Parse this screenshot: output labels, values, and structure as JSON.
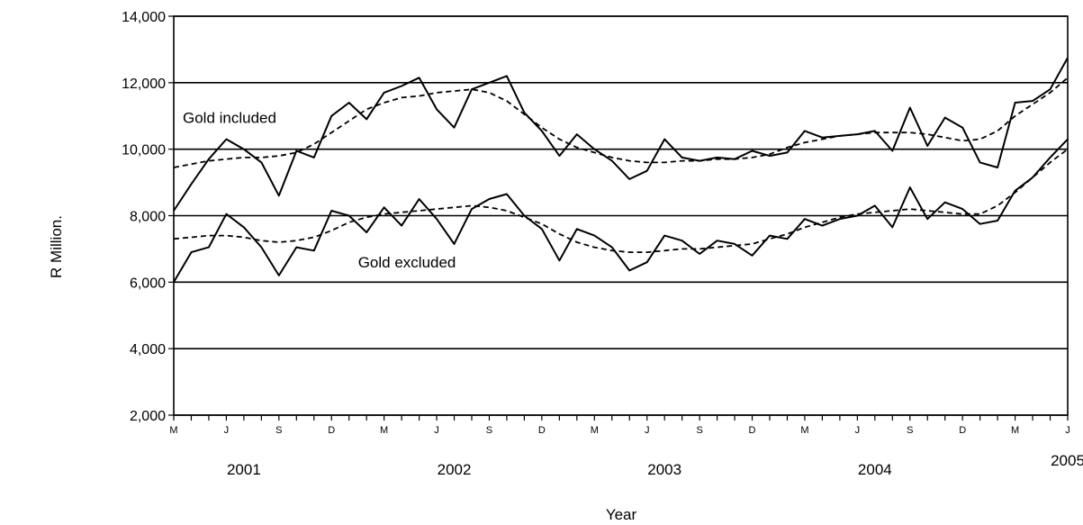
{
  "chart_data": {
    "type": "line",
    "xlabel": "Year",
    "ylabel": "R Million.",
    "ylim": [
      2000,
      14000
    ],
    "yticks": [
      2000,
      4000,
      6000,
      8000,
      10000,
      12000,
      14000
    ],
    "ytick_labels": [
      "2,000",
      "4,000",
      "6,000",
      "8,000",
      "10,000",
      "12,000",
      "14,000"
    ],
    "grid": "horizontal",
    "x_start": "2001-03",
    "x_end": "2005-06",
    "month_ticks": [
      {
        "date": "2001-03",
        "label": "M"
      },
      {
        "date": "2001-06",
        "label": "J"
      },
      {
        "date": "2001-09",
        "label": "S"
      },
      {
        "date": "2001-12",
        "label": "D"
      },
      {
        "date": "2002-03",
        "label": "M"
      },
      {
        "date": "2002-06",
        "label": "J"
      },
      {
        "date": "2002-09",
        "label": "S"
      },
      {
        "date": "2002-12",
        "label": "D"
      },
      {
        "date": "2003-03",
        "label": "M"
      },
      {
        "date": "2003-06",
        "label": "J"
      },
      {
        "date": "2003-09",
        "label": "S"
      },
      {
        "date": "2003-12",
        "label": "D"
      },
      {
        "date": "2004-03",
        "label": "M"
      },
      {
        "date": "2004-06",
        "label": "J"
      },
      {
        "date": "2004-09",
        "label": "S"
      },
      {
        "date": "2004-12",
        "label": "D"
      },
      {
        "date": "2005-03",
        "label": "M"
      },
      {
        "date": "2005-06",
        "label": "J"
      }
    ],
    "year_labels": [
      {
        "year": "2001",
        "center": "2001-07"
      },
      {
        "year": "2002",
        "center": "2002-07"
      },
      {
        "year": "2003",
        "center": "2003-07"
      },
      {
        "year": "2004",
        "center": "2004-07"
      },
      {
        "year": "2005",
        "center": "2005-06"
      }
    ],
    "annotations": [
      {
        "text": "Gold included",
        "date": "2001-03",
        "value": 10950
      },
      {
        "text": "Gold excluded",
        "date": "2002-01",
        "value": 6600
      }
    ],
    "x": [
      "2001-03",
      "2001-04",
      "2001-05",
      "2001-06",
      "2001-07",
      "2001-08",
      "2001-09",
      "2001-10",
      "2001-11",
      "2001-12",
      "2002-01",
      "2002-02",
      "2002-03",
      "2002-04",
      "2002-05",
      "2002-06",
      "2002-07",
      "2002-08",
      "2002-09",
      "2002-10",
      "2002-11",
      "2002-12",
      "2003-01",
      "2003-02",
      "2003-03",
      "2003-04",
      "2003-05",
      "2003-06",
      "2003-07",
      "2003-08",
      "2003-09",
      "2003-10",
      "2003-11",
      "2003-12",
      "2004-01",
      "2004-02",
      "2004-03",
      "2004-04",
      "2004-05",
      "2004-06",
      "2004-07",
      "2004-08",
      "2004-09",
      "2004-10",
      "2004-11",
      "2004-12",
      "2005-01",
      "2005-02",
      "2005-03",
      "2005-04",
      "2005-05",
      "2005-06"
    ],
    "series": [
      {
        "style": "solid",
        "values": [
          8150,
          8950,
          9700,
          10300,
          10000,
          9600,
          8600,
          9950,
          9750,
          11000,
          11400,
          10900,
          11700,
          11900,
          12150,
          11200,
          10650,
          11800,
          12000,
          12200,
          11100,
          10550,
          9800,
          10450,
          10000,
          9650,
          9100,
          9350,
          10300,
          9750,
          9650,
          9750,
          9700,
          9950,
          9800,
          9900,
          10550,
          10350,
          10400,
          10450,
          10550,
          9950,
          11250,
          10100,
          10950,
          10650,
          9600,
          9450,
          11400,
          11450,
          11800,
          12750
        ]
      },
      {
        "style": "dashed",
        "values": [
          9450,
          9550,
          9650,
          9700,
          9750,
          9750,
          9800,
          9900,
          10150,
          10500,
          10850,
          11200,
          11400,
          11550,
          11600,
          11700,
          11750,
          11800,
          11700,
          11450,
          11050,
          10650,
          10300,
          10050,
          9900,
          9750,
          9650,
          9600,
          9600,
          9650,
          9650,
          9700,
          9700,
          9750,
          9850,
          10050,
          10200,
          10300,
          10400,
          10450,
          10500,
          10500,
          10500,
          10450,
          10350,
          10250,
          10300,
          10550,
          11000,
          11350,
          11700,
          12150
        ]
      },
      {
        "style": "solid",
        "values": [
          6000,
          6900,
          7050,
          8050,
          7650,
          7050,
          6200,
          7050,
          6950,
          8150,
          8000,
          7500,
          8250,
          7700,
          8500,
          7900,
          7150,
          8200,
          8500,
          8650,
          8000,
          7600,
          6650,
          7600,
          7400,
          7050,
          6350,
          6600,
          7400,
          7250,
          6850,
          7250,
          7150,
          6800,
          7400,
          7300,
          7900,
          7700,
          7900,
          8000,
          8300,
          7650,
          8850,
          7900,
          8400,
          8200,
          7750,
          7850,
          8750,
          9150,
          9750,
          10300
        ]
      },
      {
        "style": "dashed",
        "values": [
          7300,
          7350,
          7400,
          7400,
          7350,
          7250,
          7200,
          7250,
          7350,
          7550,
          7800,
          7950,
          8050,
          8100,
          8150,
          8200,
          8250,
          8300,
          8250,
          8150,
          7950,
          7750,
          7450,
          7200,
          7050,
          6950,
          6900,
          6900,
          6950,
          7000,
          7000,
          7050,
          7100,
          7150,
          7300,
          7450,
          7650,
          7800,
          7950,
          8050,
          8100,
          8150,
          8200,
          8150,
          8100,
          8050,
          8050,
          8300,
          8700,
          9150,
          9600,
          10000
        ]
      }
    ]
  }
}
